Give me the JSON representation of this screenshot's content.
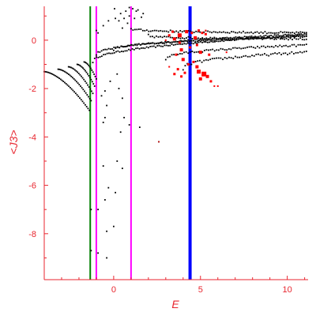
{
  "chart_data": {
    "type": "scatter",
    "xlabel": "E",
    "ylabel": "<J3>",
    "xlim": [
      -4,
      11.2
    ],
    "ylim": [
      -9.9,
      1.4
    ],
    "x_ticks": [
      0,
      5,
      10
    ],
    "y_ticks": [
      0,
      -2,
      -4,
      -6,
      -8
    ],
    "grid": false,
    "colors": {
      "axis": "#e8262f",
      "points": "#000000",
      "highlight": "#ff0000",
      "vline_green": "#008000",
      "vline_magenta": "#ff00ff",
      "vline_blue": "#0000ff"
    },
    "vertical_lines": [
      {
        "x": -1.35,
        "color": "#008000",
        "width": 2
      },
      {
        "x": -1.0,
        "color": "#ff00ff",
        "width": 2
      },
      {
        "x": 1.0,
        "color": "#ff00ff",
        "width": 2
      },
      {
        "x": 4.4,
        "color": "#0000ff",
        "width": 4
      }
    ],
    "branches": [
      {
        "x0": -4.0,
        "x1": -1.4,
        "y0": -1.3,
        "y1": -2.9,
        "n": 34,
        "curv": 1.6
      },
      {
        "x0": -3.2,
        "x1": -1.3,
        "y0": -1.2,
        "y1": -2.5,
        "n": 26,
        "curv": 1.6
      },
      {
        "x0": -2.6,
        "x1": -1.2,
        "y0": -1.1,
        "y1": -2.2,
        "n": 20,
        "curv": 1.6
      },
      {
        "x0": -2.1,
        "x1": -1.1,
        "y0": -1.0,
        "y1": -1.9,
        "n": 16,
        "curv": 1.6
      },
      {
        "x0": -1.7,
        "x1": -1.0,
        "y0": -0.9,
        "y1": -1.6,
        "n": 12,
        "curv": 1.6
      }
    ],
    "bands": [
      {
        "x0": -1.2,
        "x1": 11.1,
        "y0": -0.9,
        "y1": 0.2,
        "n": 120,
        "curv": 0.45,
        "jitter": 0.06
      },
      {
        "x0": -1.0,
        "x1": 11.1,
        "y0": -0.6,
        "y1": 0.25,
        "n": 120,
        "curv": 0.45,
        "jitter": 0.06
      },
      {
        "x0": 0.0,
        "x1": 11.1,
        "y0": -0.4,
        "y1": 0.15,
        "n": 100,
        "curv": 0.45,
        "jitter": 0.06
      },
      {
        "x0": 1.0,
        "x1": 11.1,
        "y0": 0.5,
        "y1": 0.3,
        "n": 90,
        "curv": 0.3,
        "jitter": 0.08
      },
      {
        "x0": 2.0,
        "x1": 11.1,
        "y0": 0.2,
        "y1": 0.05,
        "n": 80,
        "curv": 0.3,
        "jitter": 0.08
      },
      {
        "x0": 3.0,
        "x1": 11.1,
        "y0": -0.8,
        "y1": -0.2,
        "n": 70,
        "curv": 0.4,
        "jitter": 0.08
      },
      {
        "x0": 4.0,
        "x1": 11.1,
        "y0": -1.2,
        "y1": -0.5,
        "n": 60,
        "curv": 0.4,
        "jitter": 0.1
      }
    ],
    "scatter_points": [
      [
        0.4,
        1.1
      ],
      [
        0.7,
        1.2
      ],
      [
        0.9,
        1.0
      ],
      [
        1.1,
        1.3
      ],
      [
        1.4,
        1.25
      ],
      [
        1.7,
        1.1
      ],
      [
        0.3,
        0.8
      ],
      [
        0.6,
        0.9
      ],
      [
        -0.6,
        0.6
      ],
      [
        -0.3,
        0.8
      ],
      [
        0.1,
        0.9
      ],
      [
        -0.9,
        0.3
      ],
      [
        0.8,
        0.7
      ],
      [
        1.2,
        0.9
      ],
      [
        1.6,
        0.95
      ],
      [
        0.2,
        -1.4
      ],
      [
        0.3,
        -2.0
      ],
      [
        0.5,
        -2.4
      ],
      [
        -0.5,
        -2.1
      ],
      [
        -0.4,
        -2.7
      ],
      [
        -0.7,
        -2.3
      ],
      [
        -0.2,
        -1.7
      ],
      [
        0.6,
        -3.2
      ],
      [
        0.9,
        -3.5
      ],
      [
        1.5,
        -3.6
      ],
      [
        0.4,
        -3.8
      ],
      [
        -0.5,
        -3.2
      ],
      [
        -0.6,
        -3.4
      ],
      [
        -0.6,
        -5.2
      ],
      [
        0.2,
        -5.0
      ],
      [
        0.5,
        -5.3
      ],
      [
        -0.3,
        -6.1
      ],
      [
        0.1,
        -6.3
      ],
      [
        -0.5,
        -6.6
      ],
      [
        -1.3,
        -7.0
      ],
      [
        -0.9,
        -7.0
      ],
      [
        0.0,
        -7.7
      ],
      [
        -0.4,
        -7.9
      ],
      [
        -1.3,
        -8.7
      ],
      [
        -0.9,
        -8.8
      ],
      [
        -0.4,
        -9.0
      ],
      [
        2.6,
        -4.2
      ],
      [
        -1.0,
        0.4
      ],
      [
        0.5,
        0.5
      ],
      [
        1.3,
        1.2
      ],
      [
        0.05,
        1.3
      ],
      [
        0.9,
        1.35
      ]
    ],
    "highlight_points": [
      [
        3.2,
        0.2,
        3
      ],
      [
        3.5,
        0.05,
        4
      ],
      [
        3.8,
        0.2,
        5
      ],
      [
        3.9,
        -0.4,
        4
      ],
      [
        3.6,
        -0.6,
        3
      ],
      [
        4.0,
        -0.8,
        4
      ],
      [
        3.7,
        -1.2,
        3
      ],
      [
        3.5,
        -1.4,
        3
      ],
      [
        3.2,
        -1.1,
        2
      ],
      [
        3.9,
        -1.5,
        3
      ],
      [
        4.2,
        0.35,
        4
      ],
      [
        4.5,
        0.3,
        3
      ],
      [
        4.7,
        0.1,
        4
      ],
      [
        4.8,
        -0.2,
        3
      ],
      [
        5.0,
        -0.5,
        4
      ],
      [
        4.6,
        -0.9,
        3
      ],
      [
        4.8,
        -1.1,
        4
      ],
      [
        4.9,
        -1.3,
        5
      ],
      [
        5.2,
        -1.4,
        6
      ],
      [
        5.4,
        -1.5,
        4
      ],
      [
        5.0,
        -1.6,
        4
      ],
      [
        5.6,
        -1.7,
        3
      ],
      [
        5.1,
        0.3,
        3
      ],
      [
        5.3,
        0.25,
        3
      ],
      [
        5.5,
        -0.6,
        3
      ],
      [
        4.3,
        -1.0,
        3
      ],
      [
        4.1,
        -1.35,
        3
      ],
      [
        3.4,
        0.35,
        3
      ],
      [
        5.8,
        -1.9,
        2
      ],
      [
        6.0,
        -1.9,
        2
      ],
      [
        4.4,
        -0.3,
        3
      ],
      [
        3.8,
        -0.1,
        3
      ],
      [
        5.3,
        0.4,
        2
      ],
      [
        4.9,
        0.4,
        3
      ],
      [
        3.0,
        0.0,
        2
      ],
      [
        6.5,
        -0.5,
        2
      ],
      [
        2.6,
        -4.2,
        1.5
      ]
    ]
  }
}
